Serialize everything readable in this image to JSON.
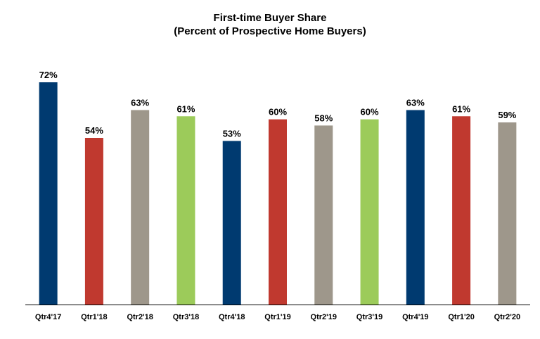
{
  "chart_data": {
    "type": "bar",
    "title": "First-time Buyer Share",
    "subtitle": "(Percent of Prospective Home Buyers)",
    "categories": [
      "Qtr4'17",
      "Qtr1'18",
      "Qtr2'18",
      "Qtr3'18",
      "Qtr4'18",
      "Qtr1'19",
      "Qtr2'19",
      "Qtr3'19",
      "Qtr4'19",
      "Qtr1'20",
      "Qtr2'20"
    ],
    "values": [
      72,
      54,
      63,
      61,
      53,
      60,
      58,
      60,
      63,
      61,
      59
    ],
    "data_labels": [
      "72%",
      "54%",
      "63%",
      "61%",
      "53%",
      "60%",
      "58%",
      "60%",
      "63%",
      "61%",
      "59%"
    ],
    "bar_colors": [
      "#003a70",
      "#c0392f",
      "#9e978b",
      "#9ccb5a",
      "#003a70",
      "#c0392f",
      "#9e978b",
      "#9ccb5a",
      "#003a70",
      "#c0392f",
      "#9e978b"
    ],
    "ylim": [
      0,
      72
    ],
    "grid": false,
    "legend": "none"
  }
}
